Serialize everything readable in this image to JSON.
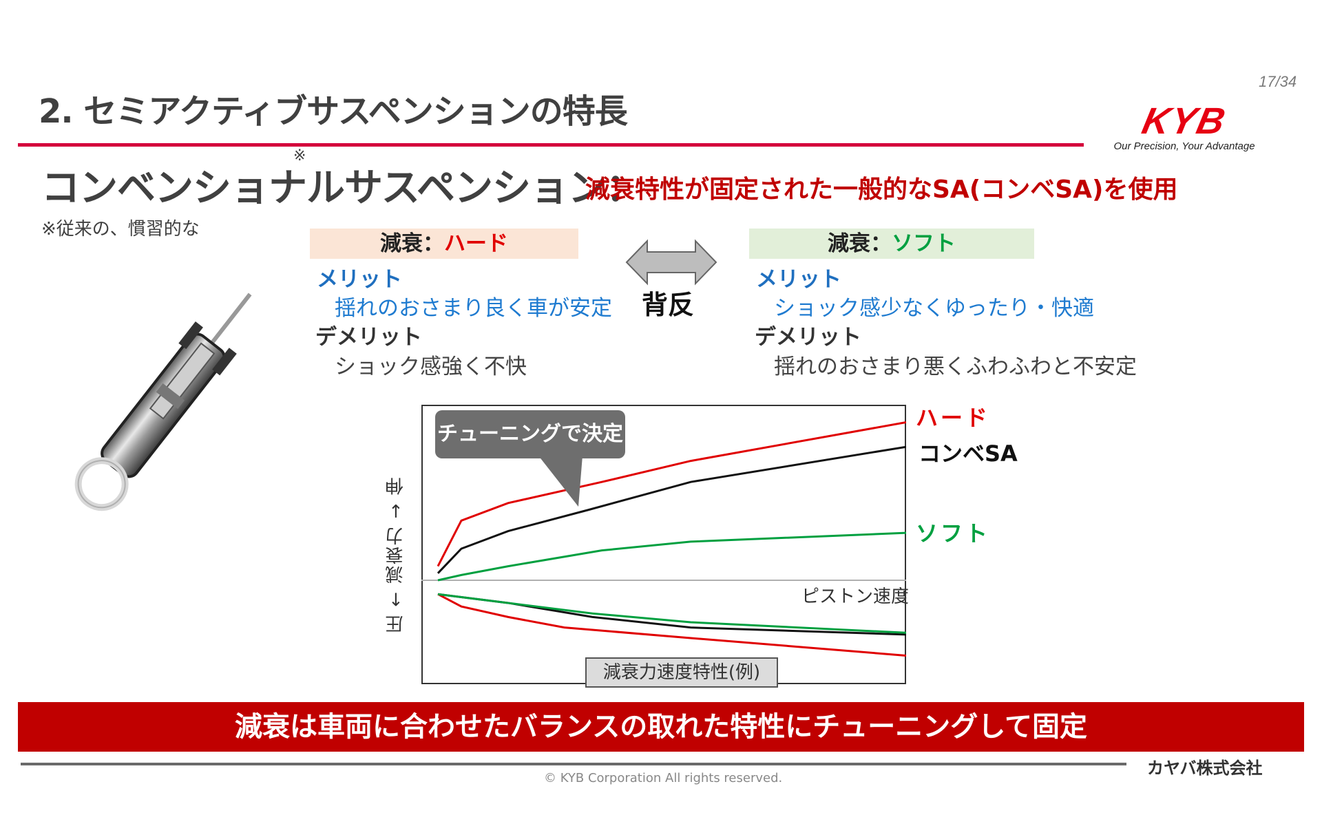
{
  "page": {
    "number": "17/34"
  },
  "logo": {
    "brand": "KYB",
    "tagline": "Our Precision, Your Advantage",
    "color": "#e60012"
  },
  "header": {
    "title": "2.  セミアクティブサスペンションの特長",
    "rule_color": "#d4003b"
  },
  "subheading": {
    "term": "コンベンショナルサスペンション：",
    "mark": "※",
    "description": "減衰特性が固定された一般的なSA(コンベSA)を使用",
    "footnote": "※従来の、慣習的な"
  },
  "comparison": {
    "hard": {
      "header_prefix": "減衰：",
      "header_value": "ハード",
      "merit_heading": "メリット",
      "merit_text": "揺れのおさまり良く車が安定",
      "demerit_heading": "デメリット",
      "demerit_text": "ショック感強く不快",
      "header_bg": "#fbe5d6"
    },
    "tradeoff_label": "背反",
    "soft": {
      "header_prefix": "減衰：",
      "header_value": "ソフト",
      "merit_heading": "メリット",
      "merit_text": "ショック感少なくゆったり・快適",
      "demerit_heading": "デメリット",
      "demerit_text": "揺れのおさまり悪くふわふわと不安定",
      "header_bg": "#e2efd9"
    }
  },
  "image": {
    "alt": "shock-absorber-cutaway"
  },
  "chart_data": {
    "type": "line",
    "title": "減衰力速度特性(例)",
    "callout": "チューニングで決定",
    "xlabel": "ピストン速度",
    "ylabel": "圧 ← 減衰力 → 伸",
    "grid": false,
    "legend_position": "right",
    "xlim": [
      0,
      100
    ],
    "ylim": [
      -100,
      100
    ],
    "series": [
      {
        "name": "ハード",
        "color": "#e00000",
        "extension": [
          [
            0,
            8
          ],
          [
            5,
            34
          ],
          [
            15,
            44
          ],
          [
            35,
            56
          ],
          [
            54,
            68
          ],
          [
            100,
            90
          ]
        ],
        "compression": [
          [
            0,
            -4
          ],
          [
            5,
            -11
          ],
          [
            15,
            -17
          ],
          [
            27,
            -23
          ],
          [
            54,
            -29
          ],
          [
            100,
            -39
          ]
        ]
      },
      {
        "name": "コンベSA",
        "color": "#111111",
        "extension": [
          [
            0,
            4
          ],
          [
            5,
            18
          ],
          [
            15,
            28
          ],
          [
            32,
            40
          ],
          [
            54,
            56
          ],
          [
            100,
            76
          ]
        ],
        "compression": [
          [
            0,
            -4
          ],
          [
            15,
            -9
          ],
          [
            33,
            -17
          ],
          [
            54,
            -23
          ],
          [
            100,
            -27
          ]
        ]
      },
      {
        "name": "ソフト",
        "color": "#00a040",
        "extension": [
          [
            0,
            0
          ],
          [
            5,
            3
          ],
          [
            15,
            8
          ],
          [
            35,
            17
          ],
          [
            54,
            22
          ],
          [
            100,
            27
          ]
        ],
        "compression": [
          [
            0,
            -4
          ],
          [
            15,
            -9
          ],
          [
            33,
            -15
          ],
          [
            54,
            -20
          ],
          [
            100,
            -26
          ]
        ]
      }
    ]
  },
  "banner": {
    "text": "減衰は車両に合わせたバランスの取れた特性にチューニングして固定",
    "bg": "#c00000"
  },
  "footer": {
    "company": "カヤバ株式会社",
    "copyright": "© KYB Corporation All rights reserved."
  }
}
